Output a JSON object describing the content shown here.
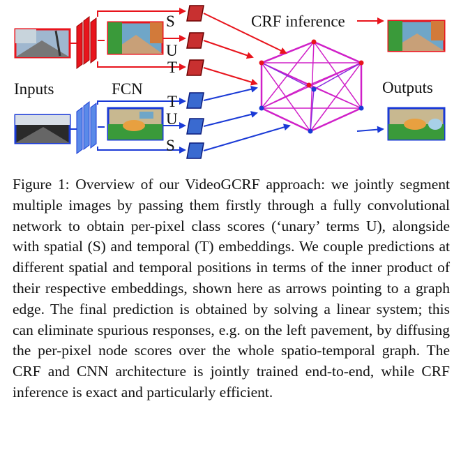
{
  "figure": {
    "labels": {
      "crf": "CRF inference",
      "inputs": "Inputs",
      "fcn": "FCN",
      "outputs": "Outputs",
      "top_stack": [
        "S",
        "U",
        "T"
      ],
      "bottom_stack": [
        "T",
        "U",
        "S"
      ]
    },
    "colors": {
      "top_stream": "#e8141c",
      "bottom_stream": "#1a3ad6",
      "graph_edges": "#d020c8",
      "graph_inner": "#8a2ce0",
      "sky": "#6fa6c8",
      "road": "#c8a078",
      "vegetation": "#3a9a3a",
      "building": "#d27a3a"
    }
  },
  "caption": {
    "text": "Figure 1: Overview of our VideoGCRF approach: we jointly segment multiple images by passing them firstly through a fully convolutional network to obtain per-pixel class scores (‘unary’ terms U), alongside with spatial (S) and temporal (T) embeddings. We couple predictions at different spatial and temporal positions in terms of the inner product of their respective embeddings, shown here as arrows pointing to a graph edge. The final prediction is obtained by solving a linear system; this can eliminate spurious responses, e.g. on the left pavement, by diffusing the per-pixel node scores over the whole spatio-temporal graph. The CRF and CNN architecture is jointly trained end-to-end, while CRF inference is exact and particularly efficient."
  }
}
